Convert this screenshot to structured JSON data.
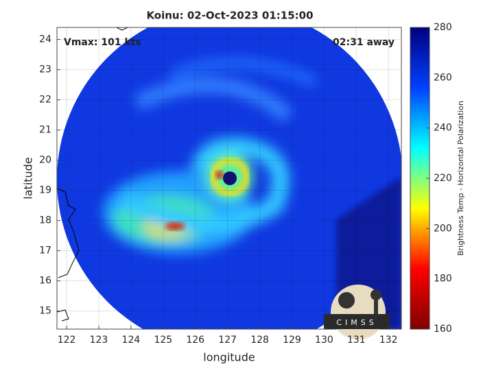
{
  "chart_data": {
    "type": "image",
    "title": "Koinu: 02-Oct-2023 01:15:00",
    "annotations": [
      "Vmax: 101 kts",
      "02:31 away"
    ],
    "xlabel": "longitude",
    "ylabel": "latitude",
    "xlim": [
      121.7,
      132.4
    ],
    "xticks": [
      122,
      123,
      124,
      125,
      126,
      127,
      128,
      129,
      130,
      131,
      132
    ],
    "ylim": [
      14.4,
      24.4
    ],
    "yticks": [
      15,
      16,
      17,
      18,
      19,
      20,
      21,
      22,
      23,
      24
    ],
    "grid": true,
    "colorbar": {
      "label": "Brightness Temp - Horizontal Polarization",
      "lim": [
        160,
        280
      ],
      "ticks": [
        160,
        180,
        200,
        220,
        240,
        260,
        280
      ],
      "colormap": [
        "#800000",
        "#ff0000",
        "#ffff00",
        "#00ffff",
        "#0040ff",
        "#000080"
      ]
    },
    "logo_text": "CIMSS"
  }
}
